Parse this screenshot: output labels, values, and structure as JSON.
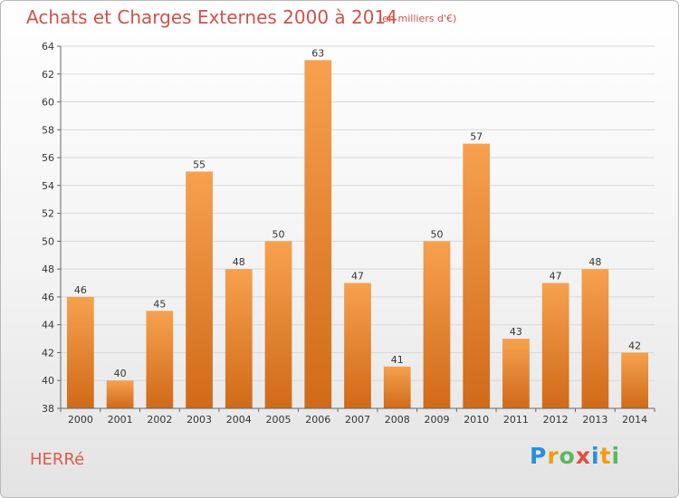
{
  "header": {
    "title": "Achats et Charges Externes 2000 à 2014",
    "subtitle": "(en milliers d'€)"
  },
  "footer": {
    "commune": "HERRé",
    "logo_letters": [
      {
        "ch": "P",
        "color": "#2a8fd6"
      },
      {
        "ch": "r",
        "color": "#f39c12"
      },
      {
        "ch": "o",
        "color": "#5cb85c"
      },
      {
        "ch": "x",
        "color": "#e74c3c"
      },
      {
        "ch": "i",
        "color": "#2a8fd6"
      },
      {
        "ch": "t",
        "color": "#f39c12"
      },
      {
        "ch": "i",
        "color": "#5cb85c"
      }
    ]
  },
  "colors": {
    "bar_light": "#f6a14f",
    "bar_dark": "#d06a18",
    "title": "#d4504a",
    "grid": "#d9d9d9"
  },
  "chart_data": {
    "type": "bar",
    "categories": [
      "2000",
      "2001",
      "2002",
      "2003",
      "2004",
      "2005",
      "2006",
      "2007",
      "2008",
      "2009",
      "2010",
      "2011",
      "2012",
      "2013",
      "2014"
    ],
    "values": [
      46,
      40,
      45,
      55,
      48,
      50,
      63,
      47,
      41,
      50,
      57,
      43,
      47,
      48,
      42
    ],
    "ylim": [
      38,
      64
    ],
    "yticks": [
      38,
      40,
      42,
      44,
      46,
      48,
      50,
      52,
      54,
      56,
      58,
      60,
      62,
      64
    ],
    "grid": true
  }
}
